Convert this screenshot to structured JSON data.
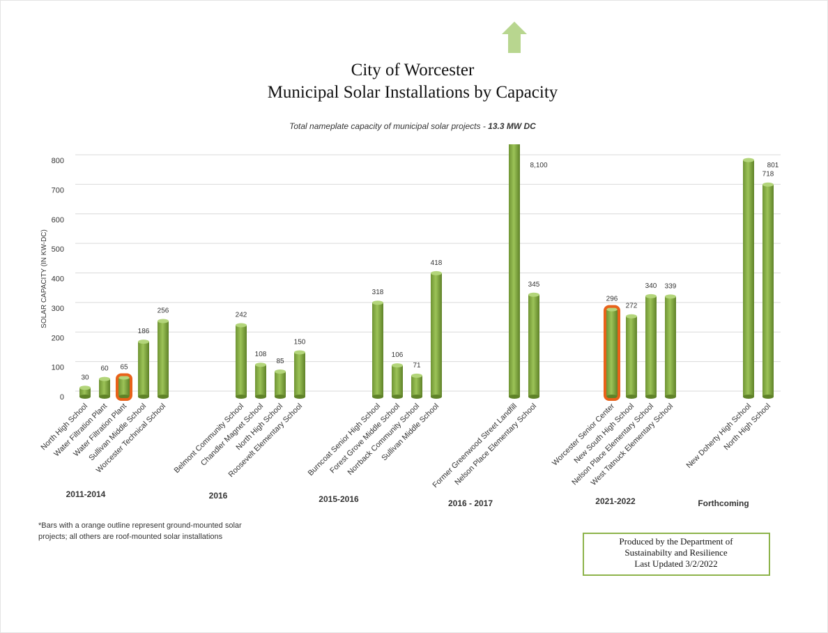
{
  "chart_data": {
    "type": "bar",
    "title": [
      "City of Worcester",
      "Municipal Solar Installations by Capacity"
    ],
    "subtitle": "Total nameplate capacity of municipal solar projects - ",
    "subtitle_emphasis": "13.3 MW DC",
    "y_axis_label": "SOLAR CAPACITY (IN KW-DC)",
    "ylim": [
      0,
      800
    ],
    "yticks": [
      0,
      100,
      200,
      300,
      400,
      500,
      600,
      700,
      800
    ],
    "grid": true,
    "color": "#8db34a",
    "outline_color": "#e8621a",
    "groups": [
      {
        "name": "2011-2014",
        "categories": [
          "North High School",
          "Water Filtration Plant",
          "Water Filtration Plant",
          "Sullivan Middle School",
          "Worcester Technical School"
        ],
        "values": [
          30,
          60,
          65,
          186,
          256
        ],
        "outlined": [
          2
        ]
      },
      {
        "name": "2016",
        "categories": [
          "Belmont Community School",
          "Chandler Magnet School",
          "North High School",
          "Roosevelt Elementary School"
        ],
        "values": [
          242,
          108,
          85,
          150
        ],
        "outlined": []
      },
      {
        "name": "2015-2016",
        "categories": [
          "Burncoat Senior High School",
          "Forest Grove Middle School",
          "Norrback Community School",
          "Sullivan Middle School"
        ],
        "values": [
          318,
          106,
          71,
          418
        ],
        "outlined": []
      },
      {
        "name": "2016 - 2017",
        "categories": [
          "Former Greenwood Street Landfill",
          "Nelson Place Elementary School"
        ],
        "values": [
          8100,
          345
        ],
        "value_labels": [
          "8,100",
          "345"
        ],
        "outlined": []
      },
      {
        "name": "2021-2022",
        "categories": [
          "Worcester Senior Center",
          "New South High School",
          "Nelson Place Elementary School",
          "West Tatnuck Elementary School"
        ],
        "values": [
          296,
          272,
          340,
          339
        ],
        "outlined": [
          0
        ]
      },
      {
        "name": "Forthcoming",
        "categories": [
          "New Doherty High School",
          "North High School"
        ],
        "values": [
          801,
          718
        ],
        "outlined": []
      }
    ],
    "footnote": [
      "*Bars with a orange outline represent ground-mounted solar",
      "projects; all others are roof-mounted solar installations"
    ],
    "credit": [
      "Produced by the Department of",
      "Sustainabilty and Resilience",
      "Last Updated 3/2/2022"
    ]
  }
}
